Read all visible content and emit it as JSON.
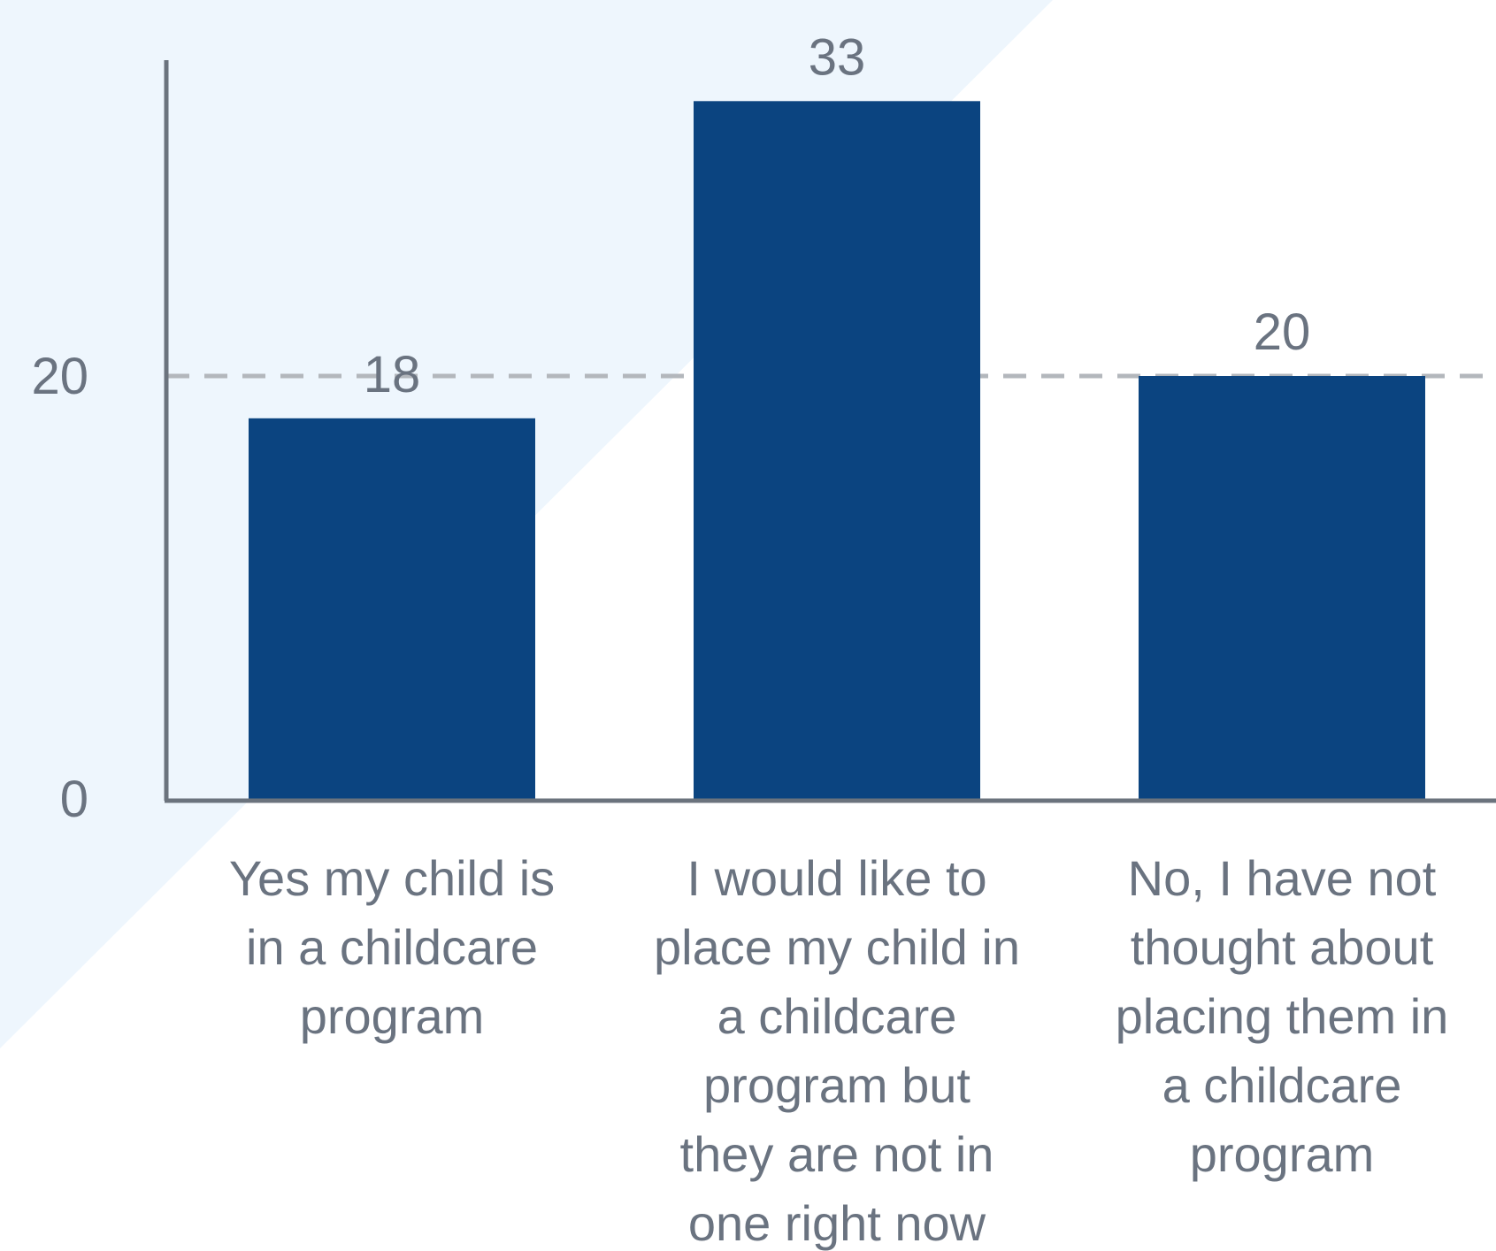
{
  "chart_data": {
    "type": "bar",
    "categories": [
      "Yes my child is in a childcare program",
      "I would like to place my child in a childcare program but they are not in one right now",
      "No, I have not thought about placing them in a childcare program"
    ],
    "category_lines": [
      [
        "Yes my child is",
        "in a childcare",
        "program"
      ],
      [
        "I would like to",
        "place my child in",
        "a childcare",
        "program but",
        "they are not in",
        "one right now"
      ],
      [
        "No, I have not",
        "thought about",
        "placing them in",
        "a childcare",
        "program"
      ]
    ],
    "values": [
      18,
      33,
      20
    ],
    "data_labels": [
      "18",
      "33",
      "20"
    ],
    "y_ticks": [
      0,
      20
    ],
    "y_tick_labels": [
      "0",
      "20"
    ],
    "ylim": [
      0,
      35
    ],
    "reference_line": 20,
    "title": "",
    "xlabel": "",
    "ylabel": "",
    "grid": false,
    "colors": {
      "bar": "#0b4480",
      "axis": "#6b737d",
      "reference_line": "#b3b7bc",
      "text": "#6a7380",
      "background_shape": "#eef6fd"
    }
  }
}
